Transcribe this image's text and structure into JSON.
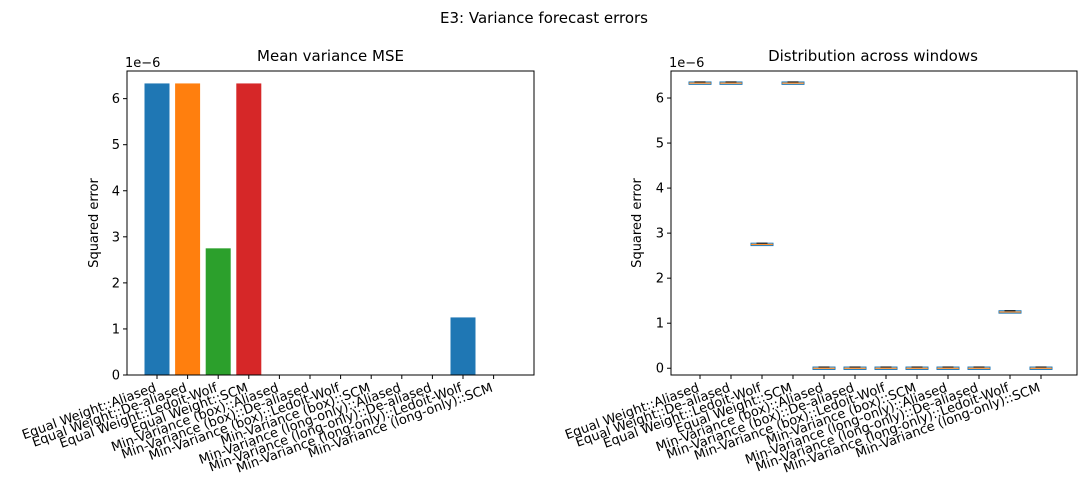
{
  "figure": {
    "suptitle": "E3: Variance forecast errors"
  },
  "colors": {
    "blue": "#1f77b4",
    "orange": "#ff7f0e",
    "green": "#2ca02c",
    "red": "#d62728",
    "median": "#ff7f0e",
    "box": "#1f77b4"
  },
  "chart_data": [
    {
      "type": "bar",
      "title": "Mean variance MSE",
      "xlabel": "",
      "ylabel": "Squared error",
      "y_multiplier_label": "1e−6",
      "ylim": [
        0,
        6.6
      ],
      "yticks": [
        0,
        1,
        2,
        3,
        4,
        5,
        6
      ],
      "categories": [
        "Equal Weight::Aliased",
        "Equal Weight::De-aliased",
        "Equal Weight::Ledoit-Wolf",
        "Equal Weight::SCM",
        "Min-Variance (box)::Aliased",
        "Min-Variance (box)::De-aliased",
        "Min-Variance (box)::Ledoit-Wolf",
        "Min-Variance (box)::SCM",
        "Min-Variance (long-only)::Aliased",
        "Min-Variance (long-only)::De-aliased",
        "Min-Variance (long-only)::Ledoit-Wolf",
        "Min-Variance (long-only)::SCM"
      ],
      "values": [
        6.33,
        6.33,
        2.75,
        6.33,
        0.0,
        0.0,
        0.0,
        0.0,
        0.0,
        0.0,
        1.25,
        0.0
      ],
      "bar_colors": [
        "#1f77b4",
        "#ff7f0e",
        "#2ca02c",
        "#d62728",
        "#9467bd",
        "#8c564b",
        "#e377c2",
        "#7f7f7f",
        "#bcbd22",
        "#17becf",
        "#1f77b4",
        "#ff7f0e"
      ],
      "grid": false
    },
    {
      "type": "box",
      "title": "Distribution across windows",
      "xlabel": "",
      "ylabel": "Squared error",
      "y_multiplier_label": "1e−6",
      "ylim": [
        -0.15,
        6.6
      ],
      "yticks": [
        0,
        1,
        2,
        3,
        4,
        5,
        6
      ],
      "categories": [
        "Equal Weight::Aliased",
        "Equal Weight::De-aliased",
        "Equal Weight::Ledoit-Wolf",
        "Equal Weight::SCM",
        "Min-Variance (box)::Aliased",
        "Min-Variance (box)::De-aliased",
        "Min-Variance (box)::Ledoit-Wolf",
        "Min-Variance (box)::SCM",
        "Min-Variance (long-only)::Aliased",
        "Min-Variance (long-only)::De-aliased",
        "Min-Variance (long-only)::Ledoit-Wolf",
        "Min-Variance (long-only)::SCM"
      ],
      "medians": [
        6.33,
        6.33,
        2.75,
        6.33,
        0.0,
        0.0,
        0.0,
        0.0,
        0.0,
        0.0,
        1.25,
        0.0
      ],
      "grid": false
    }
  ]
}
